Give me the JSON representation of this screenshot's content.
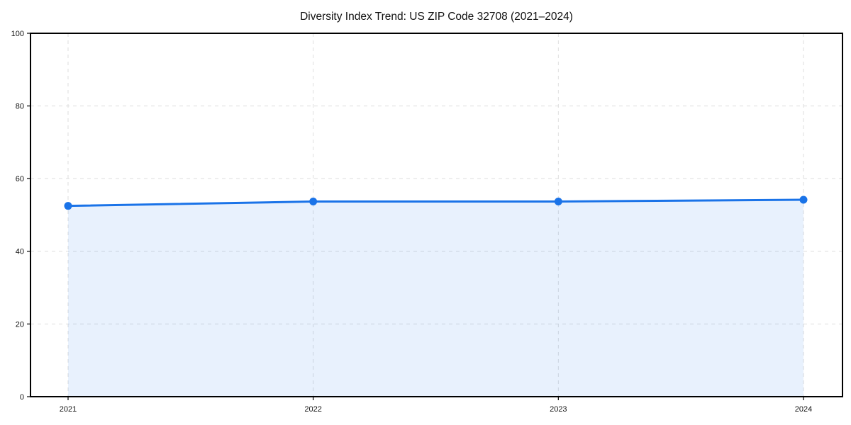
{
  "page": {
    "background": "#ffffff"
  },
  "chart_data": {
    "type": "area",
    "title": "Diversity Index Trend: US ZIP Code 32708 (2021–2024)",
    "x": [
      2021,
      2022,
      2023,
      2024
    ],
    "values": [
      52.5,
      53.7,
      53.7,
      54.2
    ],
    "xticks": [
      "2021",
      "2022",
      "2023",
      "2024"
    ],
    "yticks": [
      0,
      20,
      40,
      60,
      80,
      100
    ],
    "ylim": [
      0,
      100
    ],
    "xlabel": "",
    "ylabel": "",
    "grid": true,
    "grid_style": "dashed",
    "legend": "none",
    "marker": "circle",
    "colors": {
      "line": "#1a73e8",
      "fill_on_white": "#e8f0fc",
      "fill_opacity": 0.1,
      "grid": "#dedede",
      "axis": "#000000",
      "text": "#111111",
      "background": "#ffffff"
    }
  }
}
